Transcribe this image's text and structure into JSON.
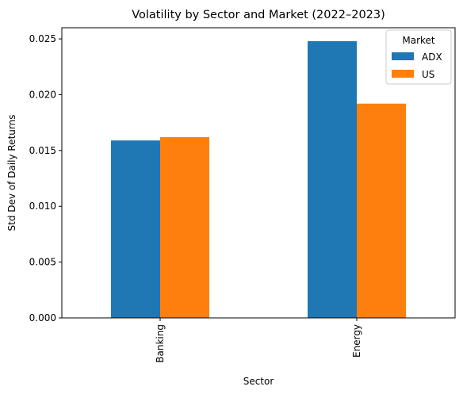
{
  "chart_data": {
    "type": "bar",
    "title": "Volatility by Sector and Market (2022–2023)",
    "xlabel": "Sector",
    "ylabel": "Std Dev of Daily Returns",
    "categories": [
      "Banking",
      "Energy"
    ],
    "series": [
      {
        "name": "ADX",
        "values": [
          0.0159,
          0.0248
        ],
        "color": "#1f77b4"
      },
      {
        "name": "US",
        "values": [
          0.0162,
          0.0192
        ],
        "color": "#ff7f0e"
      }
    ],
    "ylim": [
      0,
      0.026
    ],
    "yticks": [
      "0.000",
      "0.005",
      "0.010",
      "0.015",
      "0.020",
      "0.025"
    ],
    "legend": {
      "title": "Market",
      "placement": "top-right"
    },
    "grid": false
  }
}
